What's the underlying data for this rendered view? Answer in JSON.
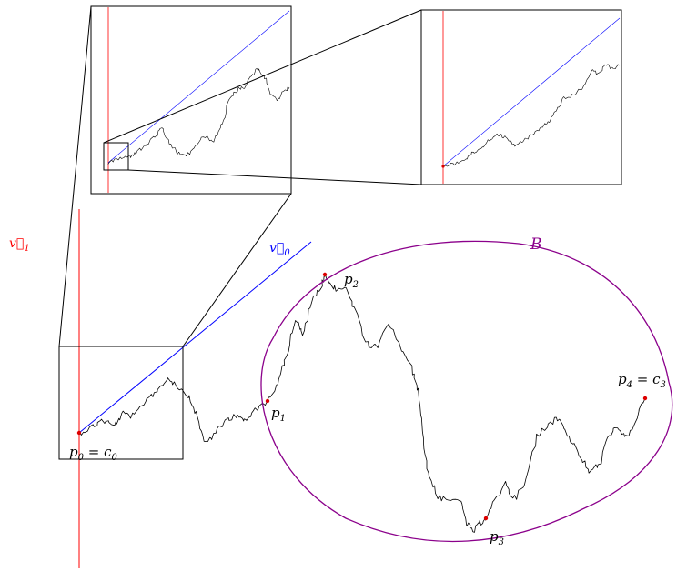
{
  "colors": {
    "background": "#ffffff",
    "path": "#000000",
    "frame": "#000000",
    "vector_v1": "#ff0000",
    "vector_v0": "#0000ff",
    "region_B": "#8b008b",
    "points": "#dd0000"
  },
  "labels": {
    "v1": "v⃗1",
    "v0": "v⃗0",
    "B": "B",
    "p0": "p0 = c0",
    "p1": "p1",
    "p2": "p2",
    "p3": "p3",
    "p4": "p4 = c3"
  },
  "label_parts": {
    "v1": {
      "base": "v⃗",
      "sub": "1"
    },
    "v0": {
      "base": "v⃗",
      "sub": "0"
    },
    "p0": {
      "base": "p",
      "sub": "0",
      "eq": " = ",
      "base2": "c",
      "sub2": "0"
    },
    "p1": {
      "base": "p",
      "sub": "1"
    },
    "p2": {
      "base": "p",
      "sub": "2"
    },
    "p3": {
      "base": "p",
      "sub": "3"
    },
    "p4": {
      "base": "p",
      "sub": "4",
      "eq": " = ",
      "base2": "c",
      "sub2": "3"
    }
  },
  "points": [
    "p0",
    "p1",
    "p2",
    "p3",
    "p4"
  ],
  "insets": [
    "zoom-level-1",
    "zoom-level-2"
  ]
}
